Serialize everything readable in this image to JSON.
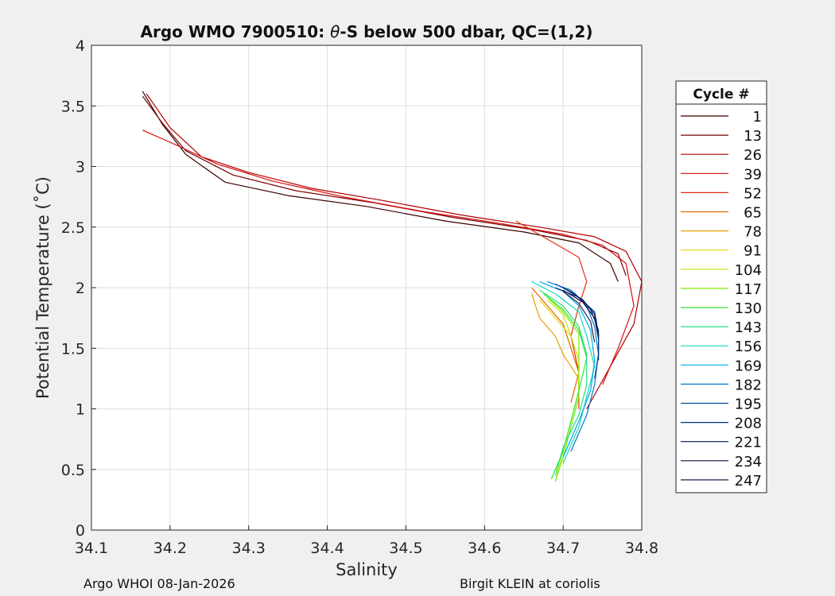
{
  "chart_data": {
    "type": "line",
    "title_prefix": "Argo WMO 7900510: ",
    "title_symbol": "θ",
    "title_suffix": "-S below 500 dbar,  QC=(1,2)",
    "xlabel": "Salinity",
    "ylabel": "Potential Temperature (˚C)",
    "xlim": [
      34.1,
      34.8
    ],
    "ylim": [
      0,
      4
    ],
    "xticks": [
      "34.1",
      "34.2",
      "34.3",
      "34.4",
      "34.5",
      "34.6",
      "34.7",
      "34.8"
    ],
    "yticks": [
      "0",
      "0.5",
      "1",
      "1.5",
      "2",
      "2.5",
      "3",
      "3.5",
      "4"
    ],
    "grid": true,
    "legend_title": "Cycle #",
    "legend_position": "outside-right",
    "series": [
      {
        "name": "1",
        "color": "#3a0000",
        "points": [
          [
            34.165,
            3.62
          ],
          [
            34.19,
            3.35
          ],
          [
            34.22,
            3.1
          ],
          [
            34.27,
            2.87
          ],
          [
            34.35,
            2.76
          ],
          [
            34.45,
            2.67
          ],
          [
            34.55,
            2.55
          ],
          [
            34.65,
            2.46
          ],
          [
            34.72,
            2.37
          ],
          [
            34.76,
            2.2
          ],
          [
            34.77,
            2.05
          ]
        ]
      },
      {
        "name": "13",
        "color": "#7a0000",
        "points": [
          [
            34.165,
            3.58
          ],
          [
            34.19,
            3.36
          ],
          [
            34.22,
            3.13
          ],
          [
            34.28,
            2.93
          ],
          [
            34.36,
            2.8
          ],
          [
            34.46,
            2.7
          ],
          [
            34.56,
            2.58
          ],
          [
            34.66,
            2.48
          ],
          [
            34.73,
            2.39
          ],
          [
            34.77,
            2.28
          ],
          [
            34.78,
            2.1
          ]
        ]
      },
      {
        "name": "26",
        "color": "#b00000",
        "points": [
          [
            34.17,
            3.6
          ],
          [
            34.2,
            3.32
          ],
          [
            34.24,
            3.08
          ],
          [
            34.3,
            2.95
          ],
          [
            34.38,
            2.82
          ],
          [
            34.47,
            2.72
          ],
          [
            34.57,
            2.6
          ],
          [
            34.67,
            2.5
          ],
          [
            34.74,
            2.42
          ],
          [
            34.78,
            2.3
          ],
          [
            34.8,
            2.05
          ],
          [
            34.79,
            1.7
          ],
          [
            34.76,
            1.35
          ],
          [
            34.73,
            1.0
          ]
        ]
      },
      {
        "name": "39",
        "color": "#d80a0a",
        "points": [
          [
            34.165,
            3.3
          ],
          [
            34.2,
            3.2
          ],
          [
            34.26,
            3.02
          ],
          [
            34.33,
            2.88
          ],
          [
            34.42,
            2.75
          ],
          [
            34.52,
            2.63
          ],
          [
            34.62,
            2.53
          ],
          [
            34.7,
            2.44
          ],
          [
            34.75,
            2.35
          ],
          [
            34.78,
            2.2
          ],
          [
            34.79,
            1.85
          ],
          [
            34.77,
            1.5
          ],
          [
            34.75,
            1.2
          ]
        ]
      },
      {
        "name": "52",
        "color": "#e03010",
        "points": [
          [
            34.64,
            2.55
          ],
          [
            34.68,
            2.4
          ],
          [
            34.72,
            2.25
          ],
          [
            34.73,
            2.05
          ],
          [
            34.72,
            1.85
          ],
          [
            34.71,
            1.6
          ],
          [
            34.72,
            1.3
          ],
          [
            34.72,
            1.0
          ]
        ]
      },
      {
        "name": "65",
        "color": "#e06800",
        "points": [
          [
            34.66,
            2.0
          ],
          [
            34.68,
            1.85
          ],
          [
            34.7,
            1.7
          ],
          [
            34.71,
            1.5
          ],
          [
            34.72,
            1.3
          ],
          [
            34.71,
            1.05
          ]
        ]
      },
      {
        "name": "78",
        "color": "#e8a000",
        "points": [
          [
            34.66,
            1.95
          ],
          [
            34.67,
            1.75
          ],
          [
            34.69,
            1.6
          ],
          [
            34.7,
            1.45
          ],
          [
            34.72,
            1.25
          ],
          [
            34.72,
            1.1
          ]
        ]
      },
      {
        "name": "91",
        "color": "#e8d400",
        "points": [
          [
            34.67,
            1.9
          ],
          [
            34.69,
            1.75
          ],
          [
            34.71,
            1.6
          ],
          [
            34.72,
            1.4
          ],
          [
            34.72,
            1.2
          ]
        ]
      },
      {
        "name": "104",
        "color": "#c8e600",
        "points": [
          [
            34.68,
            1.9
          ],
          [
            34.7,
            1.78
          ],
          [
            34.71,
            1.6
          ],
          [
            34.72,
            1.4
          ],
          [
            34.72,
            1.15
          ],
          [
            34.71,
            0.9
          ],
          [
            34.7,
            0.65
          ],
          [
            34.69,
            0.4
          ]
        ]
      },
      {
        "name": "117",
        "color": "#80e800",
        "points": [
          [
            34.68,
            1.92
          ],
          [
            34.7,
            1.8
          ],
          [
            34.72,
            1.62
          ],
          [
            34.72,
            1.4
          ],
          [
            34.72,
            1.1
          ],
          [
            34.71,
            0.85
          ],
          [
            34.7,
            0.6
          ],
          [
            34.69,
            0.4
          ]
        ]
      },
      {
        "name": "130",
        "color": "#30e830",
        "points": [
          [
            34.675,
            1.95
          ],
          [
            34.7,
            1.82
          ],
          [
            34.72,
            1.65
          ],
          [
            34.73,
            1.42
          ],
          [
            34.72,
            1.15
          ],
          [
            34.71,
            0.9
          ],
          [
            34.7,
            0.65
          ],
          [
            34.685,
            0.42
          ]
        ]
      },
      {
        "name": "143",
        "color": "#20e080",
        "points": [
          [
            34.67,
            1.98
          ],
          [
            34.7,
            1.85
          ],
          [
            34.72,
            1.68
          ],
          [
            34.73,
            1.45
          ],
          [
            34.73,
            1.2
          ],
          [
            34.72,
            0.95
          ],
          [
            34.7,
            0.68
          ],
          [
            34.69,
            0.45
          ]
        ]
      },
      {
        "name": "156",
        "color": "#10d8c0",
        "points": [
          [
            34.66,
            2.05
          ],
          [
            34.69,
            1.95
          ],
          [
            34.72,
            1.8
          ],
          [
            34.73,
            1.6
          ],
          [
            34.74,
            1.35
          ],
          [
            34.73,
            1.1
          ],
          [
            34.72,
            0.85
          ],
          [
            34.7,
            0.55
          ]
        ]
      },
      {
        "name": "169",
        "color": "#00a8e8",
        "points": [
          [
            34.67,
            2.05
          ],
          [
            34.7,
            1.97
          ],
          [
            34.72,
            1.85
          ],
          [
            34.735,
            1.65
          ],
          [
            34.74,
            1.4
          ],
          [
            34.735,
            1.15
          ],
          [
            34.72,
            0.9
          ],
          [
            34.7,
            0.6
          ]
        ]
      },
      {
        "name": "182",
        "color": "#0078c8",
        "points": [
          [
            34.68,
            2.05
          ],
          [
            34.71,
            1.98
          ],
          [
            34.73,
            1.85
          ],
          [
            34.74,
            1.68
          ],
          [
            34.745,
            1.45
          ],
          [
            34.74,
            1.2
          ],
          [
            34.73,
            0.95
          ],
          [
            34.71,
            0.65
          ]
        ]
      },
      {
        "name": "195",
        "color": "#0050a8",
        "points": [
          [
            34.69,
            2.03
          ],
          [
            34.715,
            1.95
          ],
          [
            34.735,
            1.82
          ],
          [
            34.745,
            1.65
          ],
          [
            34.745,
            1.45
          ],
          [
            34.74,
            1.25
          ]
        ]
      },
      {
        "name": "208",
        "color": "#003080",
        "points": [
          [
            34.69,
            2.0
          ],
          [
            34.72,
            1.92
          ],
          [
            34.74,
            1.8
          ],
          [
            34.745,
            1.62
          ],
          [
            34.745,
            1.4
          ]
        ]
      },
      {
        "name": "221",
        "color": "#001860",
        "points": [
          [
            34.7,
            2.0
          ],
          [
            34.725,
            1.9
          ],
          [
            34.74,
            1.78
          ],
          [
            34.745,
            1.6
          ]
        ]
      },
      {
        "name": "234",
        "color": "#101040",
        "points": [
          [
            34.7,
            1.98
          ],
          [
            34.725,
            1.88
          ],
          [
            34.74,
            1.75
          ],
          [
            34.745,
            1.58
          ]
        ]
      },
      {
        "name": "247",
        "color": "#202050",
        "points": [
          [
            34.7,
            1.97
          ],
          [
            34.72,
            1.87
          ],
          [
            34.735,
            1.72
          ],
          [
            34.74,
            1.55
          ]
        ]
      }
    ]
  },
  "footer": {
    "left": "Argo WHOI 08-Jan-2026",
    "right": "Birgit KLEIN at coriolis"
  }
}
